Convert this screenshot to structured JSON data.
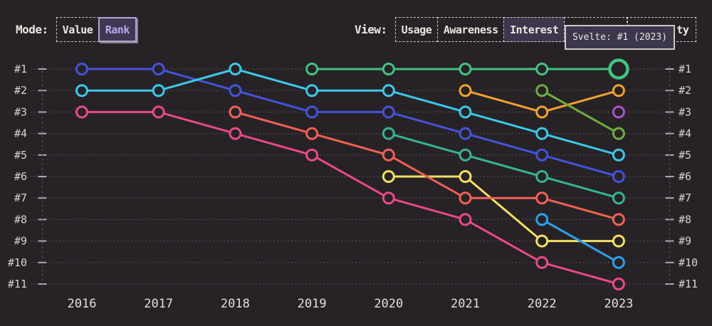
{
  "controls": {
    "mode": {
      "label": "Mode:",
      "options": [
        {
          "label": "Value",
          "selected": false
        },
        {
          "label": "Rank",
          "selected": true
        }
      ]
    },
    "view": {
      "label": "View:",
      "options": [
        {
          "label": "Usage",
          "selected": false
        },
        {
          "label": "Awareness",
          "selected": false
        },
        {
          "label": "Interest",
          "selected": true
        },
        {
          "label": "",
          "selected": false,
          "obscured": true
        },
        {
          "label": "ty",
          "selected": false,
          "obscured": true
        }
      ]
    }
  },
  "tooltip": {
    "text": "Svelte: #1 (2023)"
  },
  "colors": {
    "background": "#272226",
    "text": "#e9e3dc",
    "grid": "#5a5560",
    "tick": "#afa9b2",
    "selected_accent": "#bda6f2",
    "tooltip_bg": "#3d374e"
  },
  "chart_data": {
    "type": "line",
    "variant": "bump-rank",
    "x_labels": [
      "2016",
      "2017",
      "2018",
      "2019",
      "2020",
      "2021",
      "2022",
      "2023"
    ],
    "y_labels": [
      "#1",
      "#2",
      "#3",
      "#4",
      "#5",
      "#6",
      "#7",
      "#8",
      "#9",
      "#10",
      "#11"
    ],
    "ylabel": "rank (1 = best, inverted axis, labeled both sides)",
    "grid": "dotted horizontal line per rank, dashed vertical edges",
    "legend": "none",
    "series": [
      {
        "name": "unknown-royal-blue",
        "color": "#4353d9",
        "ranks": [
          1,
          1,
          2,
          3,
          3,
          4,
          5,
          6
        ]
      },
      {
        "name": "unknown-cyan",
        "color": "#3bc9e8",
        "ranks": [
          2,
          2,
          1,
          2,
          2,
          3,
          4,
          5
        ]
      },
      {
        "name": "unknown-pink",
        "color": "#e84a85",
        "ranks": [
          3,
          3,
          4,
          5,
          7,
          8,
          10,
          11
        ]
      },
      {
        "name": "unknown-yellow",
        "color": "#f2e064",
        "ranks": [
          null,
          null,
          null,
          null,
          6,
          6,
          9,
          9
        ]
      },
      {
        "name": "unknown-salmon",
        "color": "#ef6155",
        "ranks": [
          null,
          null,
          3,
          4,
          5,
          7,
          7,
          8
        ]
      },
      {
        "name": "Svelte",
        "color": "#40c480",
        "ranks": [
          null,
          null,
          null,
          1,
          1,
          1,
          1,
          1
        ]
      },
      {
        "name": "unknown-teal",
        "color": "#36b394",
        "ranks": [
          null,
          null,
          null,
          null,
          4,
          5,
          6,
          7
        ]
      },
      {
        "name": "unknown-orange",
        "color": "#efa32d",
        "ranks": [
          null,
          null,
          null,
          null,
          null,
          2,
          3,
          2
        ]
      },
      {
        "name": "unknown-olive",
        "color": "#6fae3c",
        "ranks": [
          null,
          null,
          null,
          null,
          null,
          null,
          2,
          4
        ]
      },
      {
        "name": "unknown-sky-blue",
        "color": "#2f9fe8",
        "ranks": [
          null,
          null,
          null,
          null,
          null,
          null,
          8,
          10
        ]
      },
      {
        "name": "unknown-purple",
        "color": "#a955c3",
        "ranks": [
          null,
          null,
          null,
          null,
          null,
          null,
          null,
          3
        ]
      }
    ],
    "hover_point": {
      "series": "Svelte",
      "year": "2023",
      "rank": 1,
      "tooltip": "Svelte: #1 (2023)"
    }
  }
}
